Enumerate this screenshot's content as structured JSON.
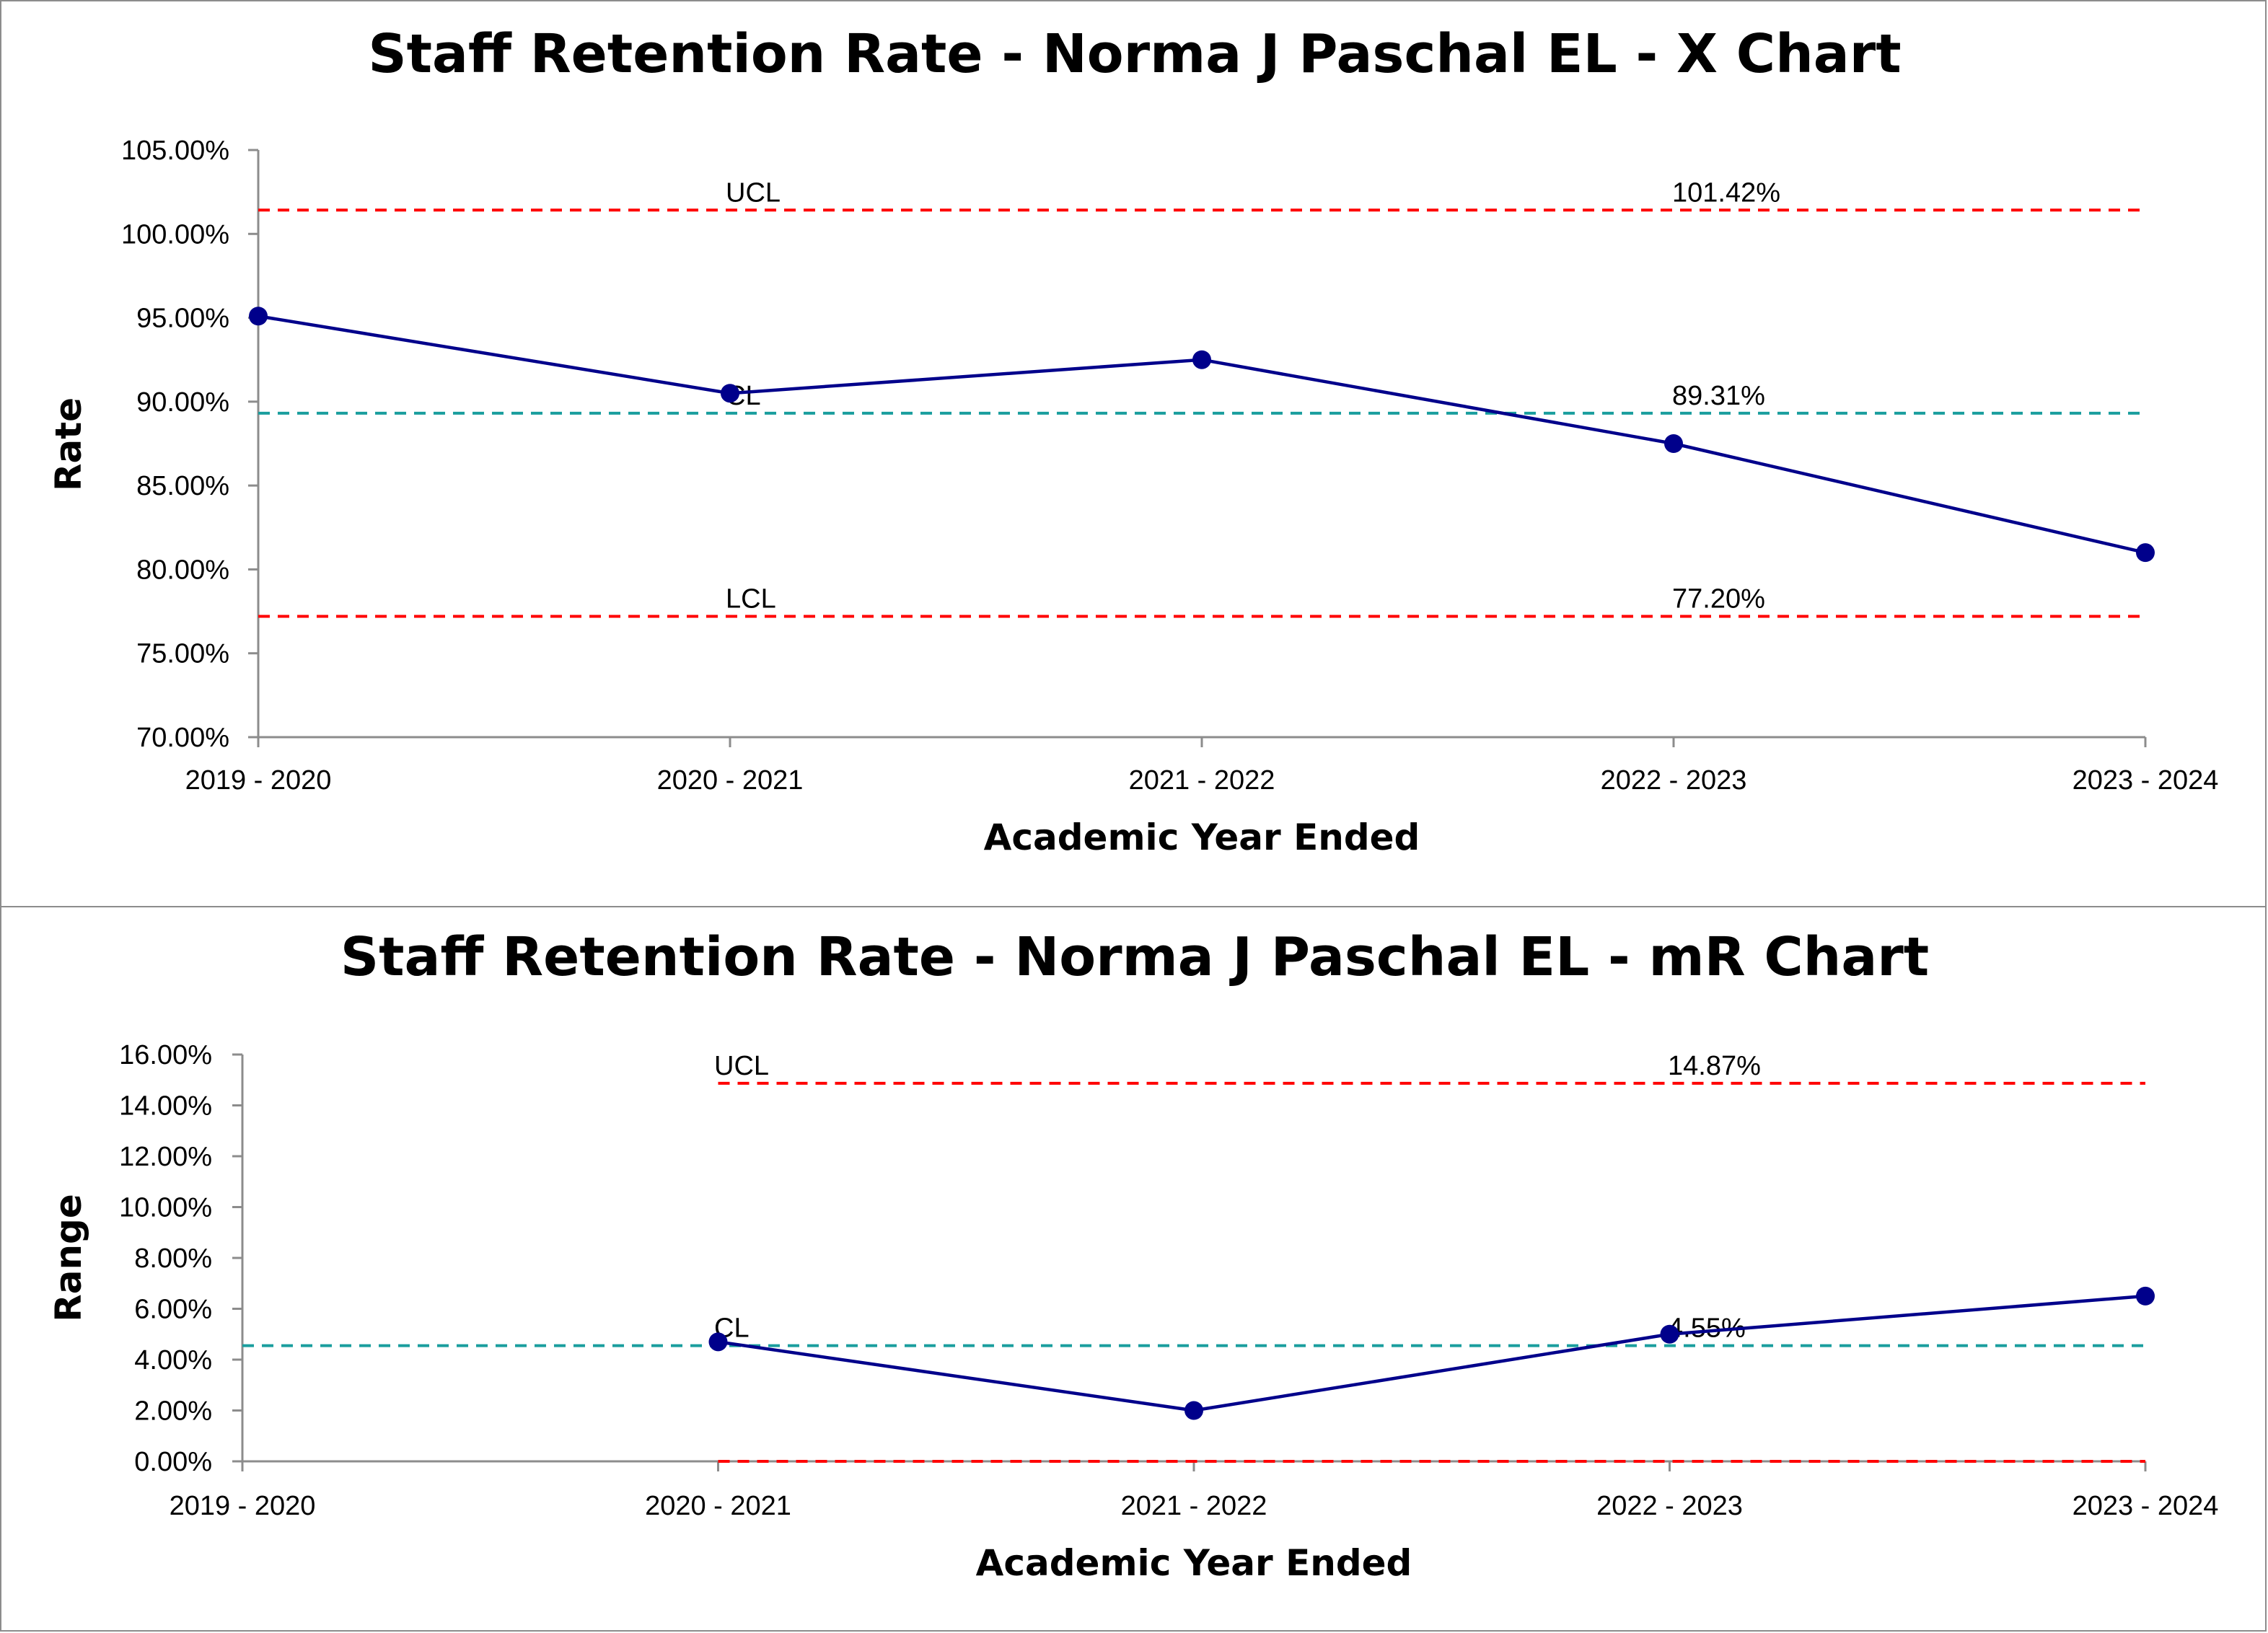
{
  "chart_data": [
    {
      "type": "line",
      "title": "Staff Retention Rate - Norma J Paschal EL - X Chart",
      "xlabel": "Academic Year Ended",
      "ylabel": "Rate",
      "categories": [
        "2019 - 2020",
        "2020 - 2021",
        "2021 - 2022",
        "2022 - 2023",
        "2023 - 2024"
      ],
      "ylim": [
        0.7,
        1.05
      ],
      "ytick_step": 0.05,
      "yticks": [
        "70.00%",
        "75.00%",
        "80.00%",
        "85.00%",
        "90.00%",
        "95.00%",
        "100.00%",
        "105.00%"
      ],
      "grid": false,
      "series": [
        {
          "values": [
            0.951,
            0.905,
            0.925,
            0.875,
            0.81
          ],
          "color": "#00008b"
        }
      ],
      "control_lines": [
        {
          "name": "UCL",
          "value": 1.0142,
          "value_label": "101.42%",
          "color": "#ff0000",
          "start_index": 0
        },
        {
          "name": "CL",
          "value": 0.8931,
          "value_label": "89.31%",
          "color": "#1a9e9e",
          "start_index": 0
        },
        {
          "name": "LCL",
          "value": 0.772,
          "value_label": "77.20%",
          "color": "#ff0000",
          "start_index": 0
        }
      ]
    },
    {
      "type": "line",
      "title": "Staff Retention Rate - Norma J Paschal EL - mR Chart",
      "xlabel": "Academic Year Ended",
      "ylabel": "Range",
      "categories": [
        "2019 - 2020",
        "2020 - 2021",
        "2021 - 2022",
        "2022 - 2023",
        "2023 - 2024"
      ],
      "ylim": [
        0.0,
        0.16
      ],
      "ytick_step": 0.02,
      "yticks": [
        "0.00%",
        "2.00%",
        "4.00%",
        "6.00%",
        "8.00%",
        "10.00%",
        "12.00%",
        "14.00%",
        "16.00%"
      ],
      "grid": false,
      "series": [
        {
          "values": [
            null,
            0.047,
            0.02,
            0.05,
            0.065
          ],
          "color": "#00008b"
        }
      ],
      "control_lines": [
        {
          "name": "UCL",
          "value": 0.1487,
          "value_label": "14.87%",
          "color": "#ff0000",
          "start_index": 1
        },
        {
          "name": "CL",
          "value": 0.0455,
          "value_label": "4.55%",
          "color": "#1a9e9e",
          "start_index": 0
        },
        {
          "name": "LCL",
          "value": 0.0,
          "value_label": "",
          "color": "#ff0000",
          "start_index": 1,
          "hide_name": true
        }
      ]
    }
  ]
}
